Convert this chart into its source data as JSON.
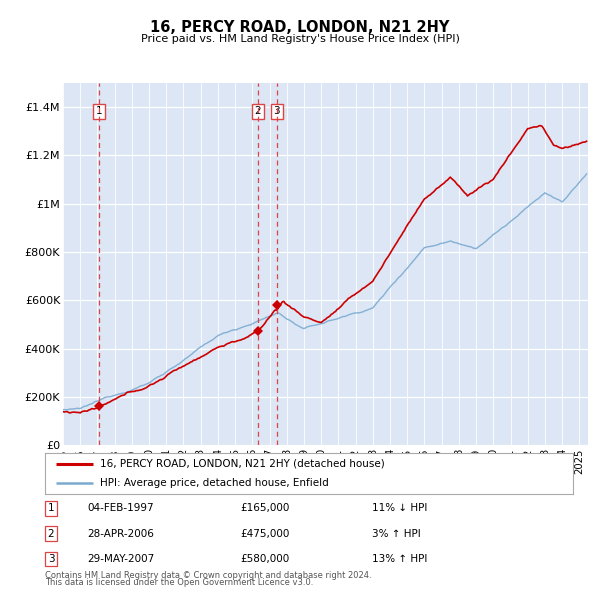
{
  "title": "16, PERCY ROAD, LONDON, N21 2HY",
  "subtitle": "Price paid vs. HM Land Registry's House Price Index (HPI)",
  "xlim_start": 1995.0,
  "xlim_end": 2025.5,
  "ylim_min": 0,
  "ylim_max": 1500000,
  "bg_color": "#dce6f5",
  "red_line_color": "#cc0000",
  "blue_line_color": "#7aaad0",
  "vline_color": "#dd4444",
  "purchases": [
    {
      "label": "1",
      "date_num": 1997.09,
      "price": 165000,
      "desc": "04-FEB-1997",
      "amount": "£165,000",
      "hpi_pct": "11% ↓ HPI"
    },
    {
      "label": "2",
      "date_num": 2006.32,
      "price": 475000,
      "desc": "28-APR-2006",
      "amount": "£475,000",
      "hpi_pct": "3% ↑ HPI"
    },
    {
      "label": "3",
      "date_num": 2007.41,
      "price": 580000,
      "desc": "29-MAY-2007",
      "amount": "£580,000",
      "hpi_pct": "13% ↑ HPI"
    }
  ],
  "legend_entry1": "16, PERCY ROAD, LONDON, N21 2HY (detached house)",
  "legend_entry2": "HPI: Average price, detached house, Enfield",
  "footnote1": "Contains HM Land Registry data © Crown copyright and database right 2024.",
  "footnote2": "This data is licensed under the Open Government Licence v3.0.",
  "ytick_labels": [
    "£0",
    "£200K",
    "£400K",
    "£600K",
    "£800K",
    "£1M",
    "£1.2M",
    "£1.4M"
  ],
  "ytick_values": [
    0,
    200000,
    400000,
    600000,
    800000,
    1000000,
    1200000,
    1400000
  ]
}
